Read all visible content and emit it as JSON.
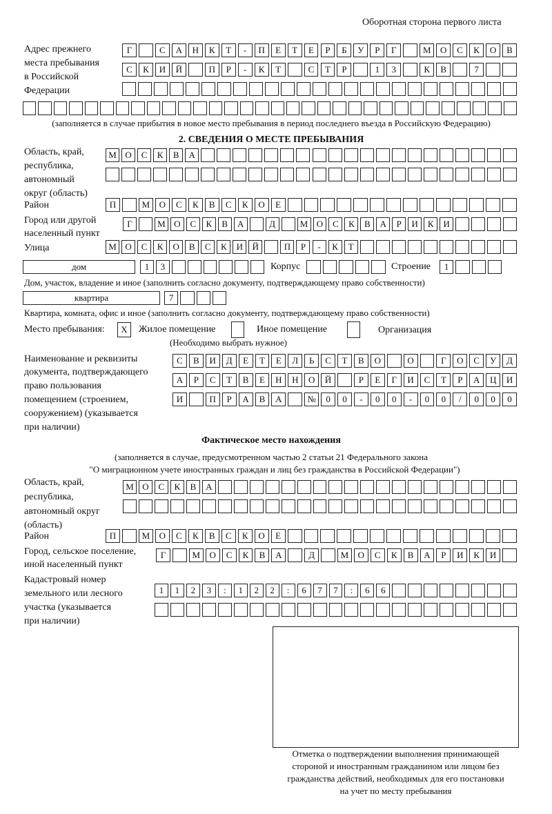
{
  "header": "Оборотная сторона первого листа",
  "prev_address": {
    "label": [
      "Адрес прежнего",
      "места пребывания",
      "в Российской",
      "Федерации"
    ],
    "rows": [
      [
        "Г",
        " ",
        "С",
        "А",
        "Н",
        "К",
        "Т",
        "-",
        "П",
        "Е",
        "Т",
        "Е",
        "Р",
        "Б",
        "У",
        "Р",
        "Г",
        " ",
        "М",
        "О",
        "С",
        "К",
        "О",
        "В"
      ],
      [
        "С",
        "К",
        "И",
        "Й",
        " ",
        "П",
        "Р",
        "-",
        "К",
        "Т",
        " ",
        "С",
        "Т",
        "Р",
        " ",
        "1",
        "3",
        " ",
        "К",
        "В",
        " ",
        "7",
        " ",
        " "
      ],
      [
        " ",
        " ",
        " ",
        " ",
        " ",
        " ",
        " ",
        " ",
        " ",
        " ",
        " ",
        " ",
        " ",
        " ",
        " ",
        " ",
        " ",
        " ",
        " ",
        " ",
        " ",
        " ",
        " ",
        " ",
        " "
      ],
      [
        " ",
        " ",
        " ",
        " ",
        " ",
        " ",
        " ",
        " ",
        " ",
        " ",
        " ",
        " ",
        " ",
        " ",
        " ",
        " ",
        " ",
        " ",
        " ",
        " ",
        " ",
        " ",
        " ",
        " ",
        " ",
        " ",
        " ",
        " ",
        " ",
        " ",
        " ",
        " "
      ]
    ],
    "note": "(заполняется в случае прибытия в новое место пребывания в период последнего въезда в Российскую Федерацию)"
  },
  "section2": {
    "title": "2. СВЕДЕНИЯ О МЕСТЕ ПРЕБЫВАНИЯ",
    "oblast_label": [
      "Область, край,",
      "республика,",
      "автономный",
      "округ (область)"
    ],
    "oblast_rows": [
      [
        "М",
        "О",
        "С",
        "К",
        "В",
        "А",
        " ",
        " ",
        " ",
        " ",
        " ",
        " ",
        " ",
        " ",
        " ",
        " ",
        " ",
        " ",
        " ",
        " ",
        " ",
        " ",
        " ",
        " ",
        " ",
        " "
      ],
      [
        " ",
        " ",
        " ",
        " ",
        " ",
        " ",
        " ",
        " ",
        " ",
        " ",
        " ",
        " ",
        " ",
        " ",
        " ",
        " ",
        " ",
        " ",
        " ",
        " ",
        " ",
        " ",
        " ",
        " ",
        " ",
        " "
      ]
    ],
    "rayon_label": "Район",
    "rayon_row": [
      "П",
      " ",
      "М",
      "О",
      "С",
      "К",
      "В",
      "С",
      "К",
      "О",
      "Е",
      " ",
      " ",
      " ",
      " ",
      " ",
      " ",
      " ",
      " ",
      " ",
      " ",
      " ",
      " ",
      " ",
      " "
    ],
    "city_label": [
      "Город или другой",
      "населенный пункт"
    ],
    "city_row": [
      "Г",
      " ",
      "М",
      "О",
      "С",
      "К",
      "В",
      "А",
      " ",
      "Д",
      " ",
      "М",
      "О",
      "С",
      "К",
      "В",
      "А",
      "Р",
      "И",
      "К",
      "И",
      " ",
      " ",
      " ",
      " "
    ],
    "street_label": "Улица",
    "street_row": [
      "М",
      "О",
      "С",
      "К",
      "О",
      "В",
      "С",
      "К",
      "И",
      "Й",
      " ",
      "П",
      "Р",
      "-",
      "К",
      "Т",
      " ",
      " ",
      " ",
      " ",
      " ",
      " ",
      " ",
      " ",
      " ",
      " "
    ],
    "house_type": "дом",
    "house_row": [
      "1",
      "3",
      " ",
      " ",
      " ",
      " ",
      " ",
      " "
    ],
    "korpus_label": "Корпус",
    "korpus_row": [
      " ",
      " ",
      " ",
      " ",
      " "
    ],
    "stroenie_label": "Строение",
    "stroenie_row": [
      "1",
      " ",
      " ",
      " "
    ],
    "house_caption": "Дом, участок, владение и иное (заполнить согласно документу, подтверждающему право собственности)",
    "flat_type": "квартира",
    "flat_row": [
      "7",
      " ",
      " ",
      " "
    ],
    "flat_caption": "Квартира, комната, офис и иное (заполнить согласно документу, подтверждающему право собственности)",
    "stay_label": "Место пребывания:",
    "stay_options": [
      {
        "label": "Жилое помещение",
        "mark": "X"
      },
      {
        "label": "Иное помещение",
        "mark": ""
      },
      {
        "label": "Организация",
        "mark": ""
      }
    ],
    "stay_hint": "(Необходимо выбрать нужное)",
    "doc_label": [
      "Наименование и реквизиты",
      "документа, подтверждающего",
      "право пользования",
      "помещением (строением,",
      "сооружением) (указывается",
      "при наличии)"
    ],
    "doc_rows": [
      [
        "С",
        "В",
        "И",
        "Д",
        "Е",
        "Т",
        "Е",
        "Л",
        "Ь",
        "С",
        "Т",
        "В",
        "О",
        " ",
        "О",
        " ",
        "Г",
        "О",
        "С",
        "У",
        "Д"
      ],
      [
        "А",
        "Р",
        "С",
        "Т",
        "В",
        "Е",
        "Н",
        "Н",
        "О",
        "Й",
        " ",
        "Р",
        "Е",
        "Г",
        "И",
        "С",
        "Т",
        "Р",
        "А",
        "Ц",
        "И"
      ],
      [
        "И",
        " ",
        "П",
        "Р",
        "А",
        "В",
        "А",
        " ",
        "№",
        "0",
        "0",
        "-",
        "0",
        "0",
        "-",
        "0",
        "0",
        "/",
        "0",
        "0",
        "0"
      ]
    ]
  },
  "actual": {
    "title": "Фактическое место нахождения",
    "note": [
      "(заполняется в случае, предусмотренном частью 2 статьи 21 Федерального закона",
      "\"О миграционном учете иностранных граждан и лиц без гражданства в Российской Федерации\")"
    ],
    "oblast_label": [
      "Область, край,",
      "республика,",
      "автономный округ",
      "(область)"
    ],
    "oblast_rows": [
      [
        "М",
        "О",
        "С",
        "К",
        "В",
        "А",
        " ",
        " ",
        " ",
        " ",
        " ",
        " ",
        " ",
        " ",
        " ",
        " ",
        " ",
        " ",
        " ",
        " ",
        " ",
        " ",
        " ",
        " ",
        " "
      ],
      [
        " ",
        " ",
        " ",
        " ",
        " ",
        " ",
        " ",
        " ",
        " ",
        " ",
        " ",
        " ",
        " ",
        " ",
        " ",
        " ",
        " ",
        " ",
        " ",
        " ",
        " ",
        " ",
        " ",
        " ",
        " "
      ]
    ],
    "rayon_label": "Район",
    "rayon_row": [
      "П",
      " ",
      "М",
      "О",
      "С",
      "К",
      "В",
      "С",
      "К",
      "О",
      "Е",
      " ",
      " ",
      " ",
      " ",
      " ",
      " ",
      " ",
      " ",
      " ",
      " ",
      " ",
      " ",
      " ",
      " "
    ],
    "city_label": [
      "Город, сельское поселение,",
      "иной населенный пункт"
    ],
    "city_row": [
      "Г",
      " ",
      "М",
      "О",
      "С",
      "К",
      "В",
      "А",
      " ",
      "Д",
      " ",
      "М",
      "О",
      "С",
      "К",
      "В",
      "А",
      "Р",
      "И",
      "К",
      "И",
      " "
    ],
    "cadastre_label": [
      "Кадастровый номер",
      "земельного или лесного",
      "участка (указывается",
      "при наличии)"
    ],
    "cadastre_rows": [
      [
        "1",
        "1",
        "2",
        "3",
        ":",
        "1",
        "2",
        "2",
        ":",
        "6",
        "7",
        "7",
        ":",
        "6",
        "6",
        " ",
        " ",
        " ",
        " ",
        " ",
        " ",
        " ",
        " "
      ],
      [
        " ",
        " ",
        " ",
        " ",
        " ",
        " ",
        " ",
        " ",
        " ",
        " ",
        " ",
        " ",
        " ",
        " ",
        " ",
        " ",
        " ",
        " ",
        " ",
        " ",
        " ",
        " ",
        " "
      ]
    ]
  },
  "stamp_caption": [
    "Отметка о подтверждении выполнения принимающей",
    "стороной и иностранным гражданином или лицом без",
    "гражданства действий, необходимых для его постановки",
    "на учет по месту пребывания"
  ]
}
